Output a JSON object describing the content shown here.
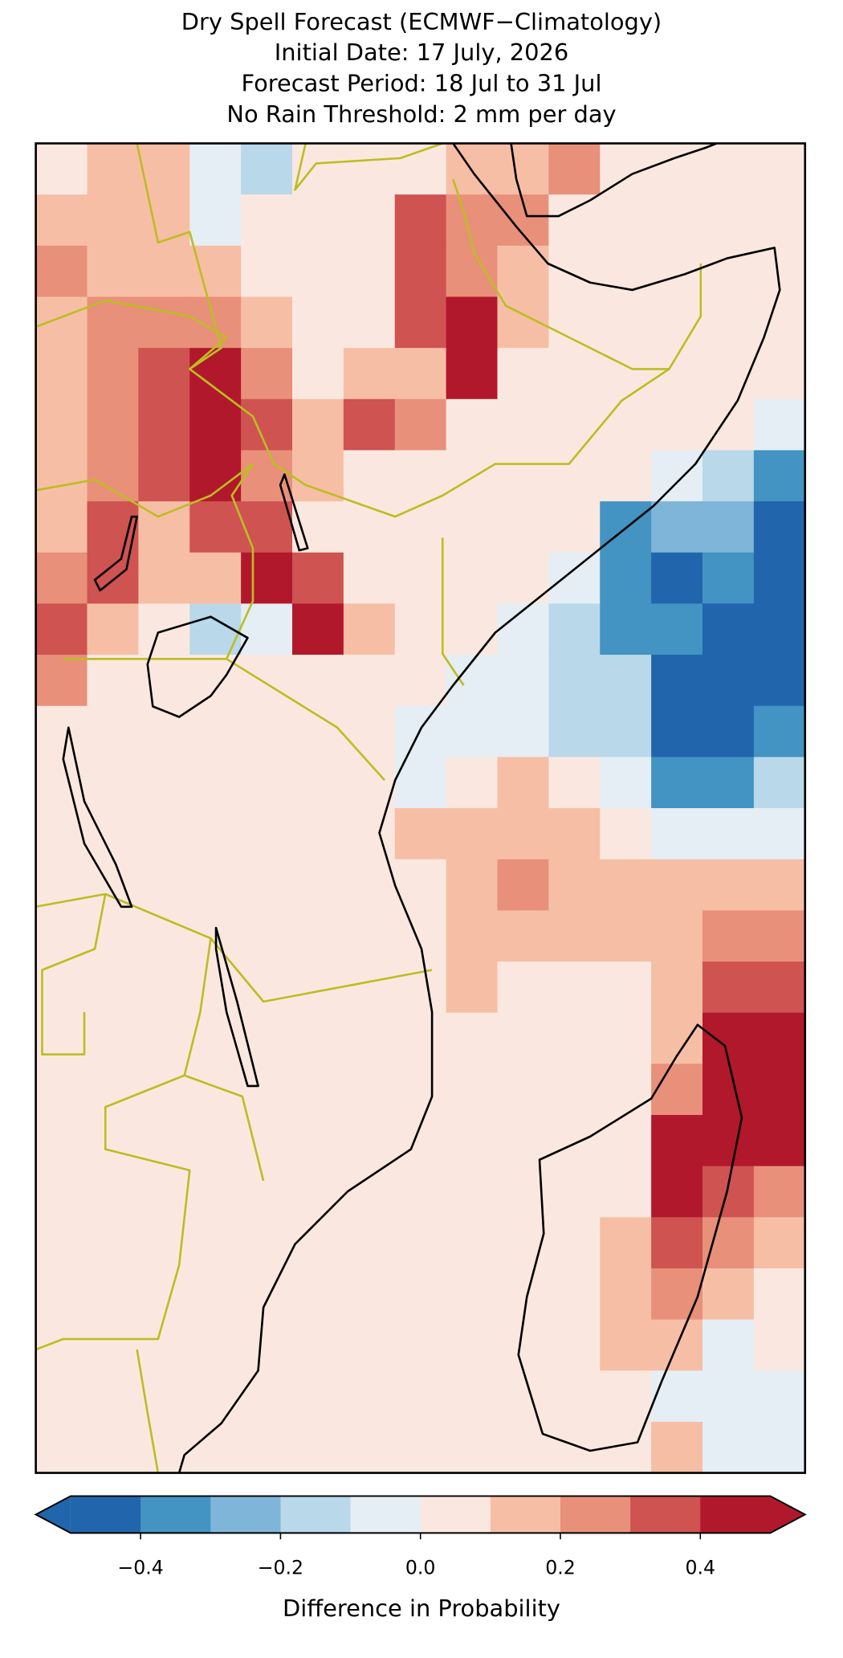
{
  "chart_data": {
    "type": "heatmap",
    "title": [
      "Dry Spell Forecast (ECMWF−Climatology)",
      "Initial Date: 17 July, 2026",
      "Forecast Period: 18 Jul to 31 Jul",
      "No Rain Threshold: 2 mm per day"
    ],
    "values": [
      [
        0.05,
        0.15,
        0.1,
        -0.05,
        -0.15,
        0.05,
        0.05,
        0.05,
        0.1,
        0.15,
        0.25,
        0.05,
        0.05,
        0.05,
        0.05
      ],
      [
        0.15,
        0.1,
        0.15,
        -0.1,
        0.05,
        0.05,
        0.05,
        0.35,
        0.2,
        0.2,
        0.05,
        0.05,
        0.05,
        0.05,
        0.05
      ],
      [
        0.2,
        0.15,
        0.15,
        0.1,
        0.05,
        0.05,
        0.05,
        0.3,
        0.25,
        0.15,
        0.05,
        0.05,
        0.05,
        0.05,
        0.05
      ],
      [
        0.15,
        0.2,
        0.25,
        0.2,
        0.1,
        0.05,
        0.05,
        0.3,
        0.4,
        0.1,
        0.05,
        0.05,
        0.05,
        0.05,
        0.05
      ],
      [
        0.1,
        0.25,
        0.3,
        0.45,
        0.2,
        0.05,
        0.1,
        0.15,
        0.4,
        0.05,
        0.05,
        0.05,
        0.05,
        0.05,
        0.05
      ],
      [
        0.1,
        0.25,
        0.35,
        0.45,
        0.3,
        0.15,
        0.3,
        0.2,
        0.05,
        0.05,
        0.05,
        0.05,
        0.05,
        0.05,
        -0.05
      ],
      [
        0.1,
        0.2,
        0.3,
        0.45,
        0.25,
        0.1,
        0.05,
        0.05,
        0.05,
        0.05,
        0.05,
        0.05,
        -0.05,
        -0.15,
        -0.35
      ],
      [
        0.15,
        0.35,
        0.15,
        0.35,
        0.35,
        0.05,
        0.05,
        0.05,
        0.05,
        0.05,
        0.05,
        -0.4,
        -0.3,
        -0.3,
        -0.45
      ],
      [
        0.2,
        0.3,
        0.15,
        0.15,
        0.4,
        0.35,
        0.05,
        0.05,
        0.05,
        0.05,
        -0.1,
        -0.4,
        -0.45,
        -0.35,
        -0.45
      ],
      [
        0.3,
        0.15,
        0.05,
        -0.15,
        -0.1,
        0.4,
        0.15,
        0.05,
        0.05,
        -0.05,
        -0.15,
        -0.35,
        -0.4,
        -0.45,
        -0.45
      ],
      [
        0.2,
        0.05,
        0.05,
        0.05,
        0.05,
        0.05,
        0.05,
        0.05,
        -0.05,
        -0.1,
        -0.15,
        -0.2,
        -0.45,
        -0.45,
        -0.45
      ],
      [
        0.05,
        0.05,
        0.05,
        0.05,
        0.05,
        0.05,
        0.05,
        -0.05,
        -0.05,
        -0.05,
        -0.15,
        -0.15,
        -0.45,
        -0.45,
        -0.4
      ],
      [
        0.05,
        0.05,
        0.05,
        0.05,
        0.05,
        0.05,
        0.05,
        -0.1,
        0.05,
        0.15,
        0.05,
        -0.05,
        -0.4,
        -0.35,
        -0.2
      ],
      [
        0.05,
        0.05,
        0.05,
        0.05,
        0.05,
        0.05,
        0.05,
        0.1,
        0.15,
        0.15,
        0.1,
        0.05,
        -0.05,
        -0.1,
        -0.1
      ],
      [
        0.05,
        0.05,
        0.05,
        0.05,
        0.05,
        0.05,
        0.05,
        0.05,
        0.15,
        0.2,
        0.15,
        0.15,
        0.1,
        0.15,
        0.15
      ],
      [
        0.05,
        0.05,
        0.05,
        0.05,
        0.05,
        0.05,
        0.05,
        0.05,
        0.1,
        0.15,
        0.15,
        0.1,
        0.15,
        0.25,
        0.25
      ],
      [
        0.05,
        0.05,
        0.05,
        0.05,
        0.05,
        0.05,
        0.05,
        0.05,
        0.1,
        0.05,
        0.05,
        0.05,
        0.15,
        0.35,
        0.35
      ],
      [
        0.05,
        0.05,
        0.05,
        0.05,
        0.05,
        0.05,
        0.05,
        0.05,
        0.05,
        0.05,
        0.05,
        0.05,
        0.1,
        0.45,
        0.4
      ],
      [
        0.05,
        0.05,
        0.05,
        0.05,
        0.05,
        0.05,
        0.05,
        0.05,
        0.05,
        0.05,
        0.05,
        0.05,
        0.25,
        0.45,
        0.45
      ],
      [
        0.05,
        0.05,
        0.05,
        0.05,
        0.05,
        0.05,
        0.05,
        0.05,
        0.05,
        0.05,
        0.05,
        0.05,
        0.4,
        0.45,
        0.45
      ],
      [
        0.05,
        0.05,
        0.05,
        0.05,
        0.05,
        0.05,
        0.05,
        0.05,
        0.05,
        0.05,
        0.05,
        0.05,
        0.4,
        0.35,
        0.25
      ],
      [
        0.05,
        0.05,
        0.05,
        0.05,
        0.05,
        0.05,
        0.05,
        0.05,
        0.05,
        0.05,
        0.05,
        0.15,
        0.3,
        0.25,
        0.15
      ],
      [
        0.05,
        0.05,
        0.05,
        0.05,
        0.05,
        0.05,
        0.05,
        0.05,
        0.05,
        0.05,
        0.05,
        0.15,
        0.2,
        0.1,
        0.05
      ],
      [
        0.05,
        0.05,
        0.05,
        0.05,
        0.05,
        0.05,
        0.05,
        0.05,
        0.05,
        0.05,
        0.05,
        0.15,
        0.1,
        -0.05,
        0.05
      ],
      [
        0.05,
        0.05,
        0.05,
        0.05,
        0.05,
        0.05,
        0.05,
        0.05,
        0.05,
        0.05,
        0.05,
        0.05,
        -0.05,
        -0.05,
        -0.05
      ],
      [
        0.05,
        0.05,
        0.05,
        0.05,
        0.05,
        0.05,
        0.05,
        0.05,
        0.05,
        0.05,
        0.05,
        0.05,
        0.1,
        -0.05,
        -0.05
      ]
    ],
    "colorbar": {
      "boundaries": [
        -0.5,
        -0.4,
        -0.3,
        -0.2,
        -0.1,
        0,
        0.1,
        0.2,
        0.3,
        0.4,
        0.5
      ],
      "colors": [
        "#2166ac",
        "#4393c3",
        "#7fb5d8",
        "#b9d8ea",
        "#e5eef4",
        "#fae8e0",
        "#f7bea6",
        "#e8907a",
        "#cf5350",
        "#b2182b"
      ],
      "extend": "both",
      "ticks": [
        {
          "value": -0.4,
          "label": "−0.4"
        },
        {
          "value": -0.2,
          "label": "−0.2"
        },
        {
          "value": 0,
          "label": "0.0"
        },
        0.2,
        0.4
      ],
      "label": "Difference in Probability"
    }
  }
}
